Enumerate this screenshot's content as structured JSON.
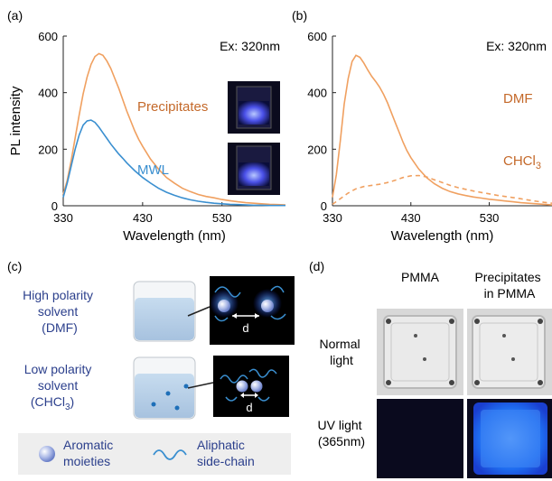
{
  "chart_data": [
    {
      "panel": "(a)",
      "type": "line",
      "xlabel": "Wavelength (nm)",
      "ylabel": "PL intensity",
      "xlim": [
        330,
        610
      ],
      "ylim": [
        0,
        600
      ],
      "xticks": [
        "330",
        "430",
        "530"
      ],
      "yticks": [
        "0",
        "200",
        "400",
        "600"
      ],
      "annotation": "Ex: 320nm",
      "series": [
        {
          "name": "Precipitates",
          "color": "#f0a060",
          "style": "solid",
          "x": [
            330,
            335,
            340,
            345,
            350,
            355,
            360,
            365,
            370,
            375,
            380,
            385,
            390,
            395,
            400,
            405,
            410,
            415,
            420,
            425,
            430,
            440,
            450,
            460,
            470,
            480,
            490,
            500,
            510,
            520,
            530,
            540,
            550,
            560,
            570,
            580,
            590,
            600,
            610
          ],
          "y": [
            40,
            90,
            160,
            240,
            320,
            395,
            455,
            500,
            528,
            538,
            532,
            512,
            485,
            450,
            415,
            375,
            335,
            300,
            265,
            235,
            210,
            165,
            130,
            100,
            80,
            62,
            50,
            40,
            33,
            28,
            22,
            18,
            14,
            11,
            9,
            7,
            5,
            4,
            3
          ]
        },
        {
          "name": "MWL",
          "color": "#3a8fd0",
          "style": "solid",
          "x": [
            330,
            335,
            340,
            345,
            350,
            355,
            360,
            365,
            370,
            375,
            380,
            385,
            390,
            395,
            400,
            405,
            410,
            415,
            420,
            430,
            440,
            450,
            460,
            470,
            480,
            490,
            500,
            510,
            520,
            530,
            540,
            550,
            560,
            570,
            580,
            590,
            600,
            610
          ],
          "y": [
            30,
            80,
            140,
            200,
            250,
            285,
            300,
            303,
            295,
            278,
            258,
            238,
            218,
            200,
            183,
            168,
            152,
            138,
            124,
            100,
            80,
            62,
            48,
            37,
            28,
            21,
            16,
            12,
            9,
            7,
            5,
            4,
            3,
            2,
            2,
            1,
            1,
            1
          ]
        }
      ],
      "labels": [
        "Precipitates",
        "MWL"
      ]
    },
    {
      "panel": "(b)",
      "type": "line",
      "xlabel": "Wavelength (nm)",
      "xlim": [
        330,
        610
      ],
      "ylim": [
        0,
        600
      ],
      "xticks": [
        "330",
        "430",
        "530"
      ],
      "yticks": [
        "0",
        "200",
        "400",
        "600"
      ],
      "annotation": "Ex: 320nm",
      "series": [
        {
          "name": "DMF",
          "color": "#f0a060",
          "style": "solid",
          "x": [
            330,
            335,
            340,
            345,
            350,
            355,
            360,
            365,
            370,
            375,
            380,
            385,
            390,
            395,
            400,
            405,
            410,
            415,
            420,
            425,
            430,
            440,
            450,
            460,
            470,
            480,
            490,
            500,
            510,
            520,
            530,
            540,
            550,
            560,
            570,
            580,
            590,
            600,
            610
          ],
          "y": [
            30,
            110,
            230,
            360,
            450,
            510,
            532,
            525,
            505,
            480,
            458,
            440,
            420,
            395,
            365,
            330,
            295,
            260,
            225,
            195,
            170,
            130,
            100,
            78,
            62,
            50,
            42,
            36,
            31,
            27,
            23,
            20,
            17,
            14,
            11,
            9,
            7,
            5,
            3
          ]
        },
        {
          "name": "CHCl3",
          "color": "#f0a060",
          "style": "dashed",
          "x": [
            330,
            340,
            350,
            360,
            370,
            380,
            390,
            400,
            410,
            420,
            430,
            440,
            450,
            460,
            470,
            480,
            490,
            500,
            510,
            520,
            530,
            540,
            550,
            560,
            570,
            580,
            590,
            600,
            610
          ],
          "y": [
            5,
            25,
            45,
            60,
            68,
            72,
            76,
            82,
            90,
            100,
            106,
            107,
            102,
            92,
            82,
            72,
            64,
            58,
            52,
            47,
            42,
            37,
            33,
            29,
            25,
            20,
            16,
            12,
            9
          ]
        }
      ],
      "labels": [
        "DMF",
        "CHCl3"
      ]
    }
  ],
  "panels": {
    "a_label": "(a)",
    "b_label": "(b)",
    "c_label": "(c)",
    "d_label": "(d)"
  },
  "panel_c": {
    "high_polarity": [
      "High polarity",
      "solvent",
      "(DMF)"
    ],
    "low_polarity": [
      "Low polarity",
      "solvent",
      "(CHCl",
      ")"
    ],
    "low_sub": "3",
    "distance_label": "d",
    "legend_aromatic": [
      "Aromatic",
      "moieties"
    ],
    "legend_aliphatic": [
      "Aliphatic",
      "side-chain"
    ]
  },
  "panel_d": {
    "col_pmma": "PMMA",
    "col_precip": [
      "Precipitates",
      "in PMMA"
    ],
    "row_normal": [
      "Normal",
      "light"
    ],
    "row_uv": [
      "UV light",
      "(365nm)"
    ]
  },
  "colors": {
    "orange": "#f0a060",
    "blue": "#3a8fd0",
    "navy": "#2b3f8c",
    "glow": "#3a6cff"
  }
}
